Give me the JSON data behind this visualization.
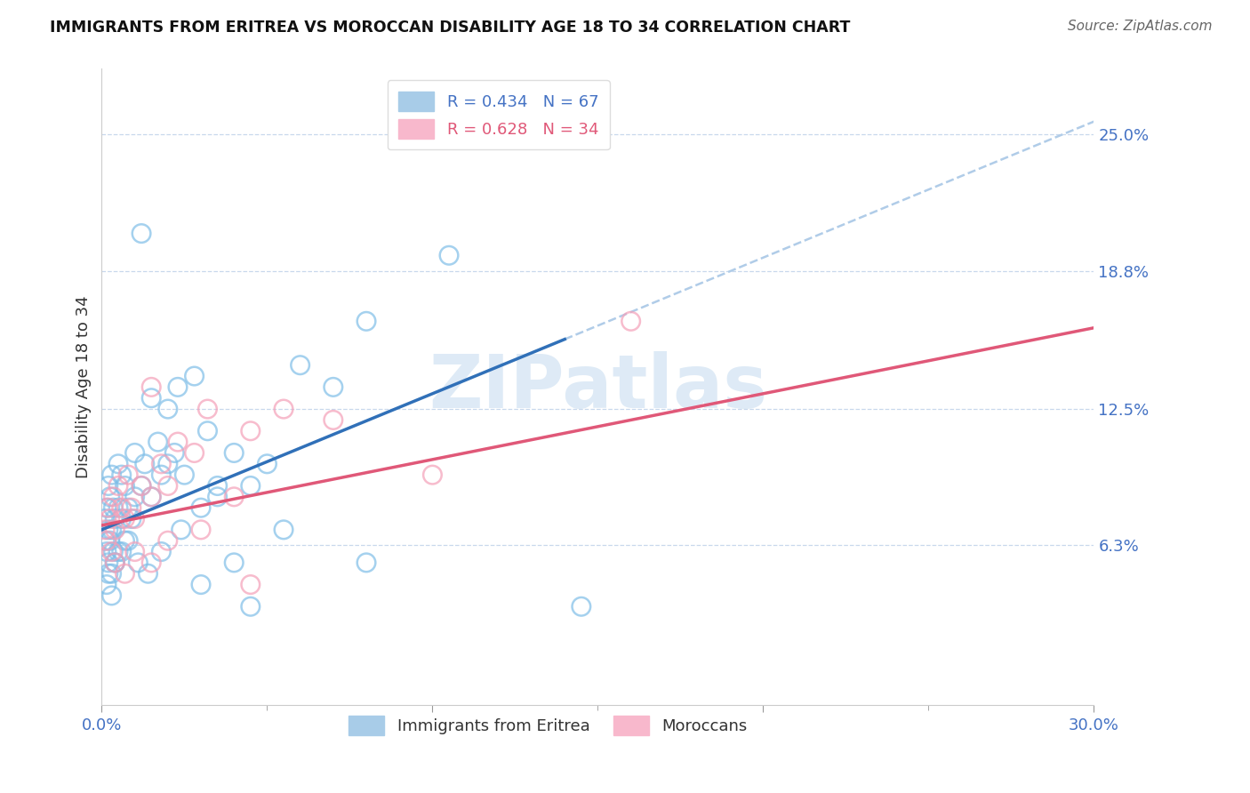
{
  "title": "IMMIGRANTS FROM ERITREA VS MOROCCAN DISABILITY AGE 18 TO 34 CORRELATION CHART",
  "source": "Source: ZipAtlas.com",
  "ylabel": "Disability Age 18 to 34",
  "xlim": [
    0.0,
    30.0
  ],
  "ylim": [
    -1.0,
    28.0
  ],
  "ytick_values": [
    6.3,
    12.5,
    18.8,
    25.0
  ],
  "eritrea_color": "#7fbee8",
  "moroccan_color": "#f4a0b8",
  "eritrea_line_color": "#3070b8",
  "moroccan_line_color": "#e05878",
  "dashed_color": "#b0cce8",
  "background_color": "#ffffff",
  "watermark_color": "#c8ddf0",
  "blue_slope": 0.62,
  "blue_intercept": 7.0,
  "pink_slope": 0.3,
  "pink_intercept": 7.2,
  "blue_line_solid_end": 14.0,
  "blue_line_dashed_end": 30.0,
  "blue_points_x": [
    0.1,
    0.1,
    0.15,
    0.15,
    0.2,
    0.2,
    0.2,
    0.25,
    0.25,
    0.3,
    0.3,
    0.3,
    0.35,
    0.35,
    0.4,
    0.4,
    0.5,
    0.5,
    0.5,
    0.6,
    0.6,
    0.7,
    0.7,
    0.8,
    0.9,
    1.0,
    1.0,
    1.2,
    1.3,
    1.5,
    1.8,
    2.0,
    2.2,
    2.5,
    3.0,
    3.2,
    3.5,
    4.0,
    4.5,
    1.5,
    1.7,
    2.0,
    2.3,
    2.8,
    3.5,
    5.0,
    6.0,
    7.0,
    8.0,
    10.5,
    0.15,
    0.2,
    0.3,
    0.4,
    0.6,
    0.8,
    1.1,
    1.4,
    1.8,
    2.4,
    3.0,
    4.0,
    5.5,
    8.0,
    4.5,
    1.2,
    14.5
  ],
  "blue_points_y": [
    6.5,
    7.5,
    6.0,
    8.0,
    5.5,
    7.0,
    9.0,
    6.5,
    8.5,
    5.0,
    7.0,
    9.5,
    6.0,
    8.0,
    5.5,
    7.5,
    6.0,
    8.0,
    10.0,
    7.5,
    9.5,
    6.5,
    9.0,
    8.0,
    7.5,
    8.5,
    10.5,
    9.0,
    10.0,
    8.5,
    9.5,
    10.0,
    10.5,
    9.5,
    8.0,
    11.5,
    9.0,
    10.5,
    9.0,
    13.0,
    11.0,
    12.5,
    13.5,
    14.0,
    8.5,
    10.0,
    14.5,
    13.5,
    16.5,
    19.5,
    4.5,
    5.0,
    4.0,
    5.5,
    6.0,
    6.5,
    5.5,
    5.0,
    6.0,
    7.0,
    4.5,
    5.5,
    7.0,
    5.5,
    3.5,
    20.5,
    3.5
  ],
  "pink_points_x": [
    0.1,
    0.15,
    0.2,
    0.25,
    0.3,
    0.35,
    0.4,
    0.5,
    0.6,
    0.7,
    0.8,
    0.9,
    1.0,
    1.2,
    1.5,
    1.8,
    2.0,
    2.3,
    2.8,
    3.2,
    4.0,
    4.5,
    5.5,
    7.0,
    10.0,
    16.0,
    0.4,
    0.7,
    1.0,
    1.5,
    2.0,
    3.0,
    4.5,
    1.5
  ],
  "pink_points_y": [
    7.0,
    6.5,
    8.0,
    7.5,
    6.0,
    8.5,
    7.0,
    9.0,
    8.0,
    7.5,
    9.5,
    8.0,
    7.5,
    9.0,
    8.5,
    10.0,
    9.0,
    11.0,
    10.5,
    12.5,
    8.5,
    11.5,
    12.5,
    12.0,
    9.5,
    16.5,
    5.5,
    5.0,
    6.0,
    5.5,
    6.5,
    7.0,
    4.5,
    13.5
  ]
}
